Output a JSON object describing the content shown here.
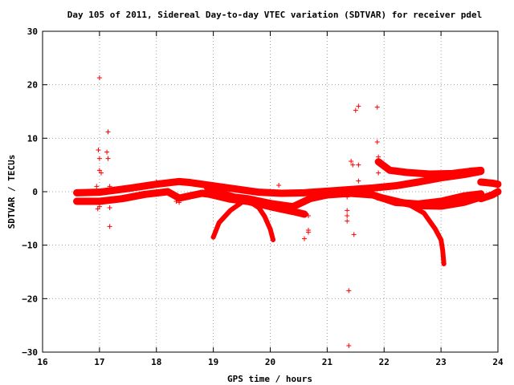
{
  "chart_data": {
    "type": "scatter",
    "title": "Day 105 of 2011, Sidereal Day-to-day VTEC variation (SDTVAR) for receiver pdel",
    "xlabel": "GPS time / hours",
    "ylabel": "SDTVAR / TECUs",
    "xlim": [
      16,
      24
    ],
    "ylim": [
      -30,
      30
    ],
    "xticks": [
      "16",
      "17",
      "18",
      "19",
      "20",
      "21",
      "22",
      "23",
      "24"
    ],
    "yticks": [
      "30",
      "20",
      "10",
      "0",
      "−10",
      "−20",
      "−30"
    ],
    "grid": true,
    "marker": "plus",
    "color": "#ff0000",
    "bands": [
      {
        "name": "",
        "points": [
          [
            16.6,
            -0.2
          ],
          [
            17.0,
            -0.1
          ],
          [
            17.5,
            0.6
          ],
          [
            18.0,
            1.4
          ],
          [
            18.4,
            1.9
          ],
          [
            18.6,
            1.7
          ],
          [
            19.0,
            1.1
          ],
          [
            19.4,
            0.5
          ],
          [
            19.8,
            -0.1
          ],
          [
            20.2,
            -0.3
          ],
          [
            20.6,
            -0.2
          ],
          [
            21.0,
            0.1
          ],
          [
            21.4,
            0.4
          ],
          [
            21.8,
            0.7
          ],
          [
            22.2,
            1.1
          ],
          [
            22.6,
            1.8
          ],
          [
            23.0,
            2.6
          ],
          [
            23.4,
            3.2
          ],
          [
            23.7,
            3.8
          ]
        ]
      },
      {
        "name": "",
        "points": [
          [
            16.6,
            -1.8
          ],
          [
            17.0,
            -1.8
          ],
          [
            17.4,
            -1.3
          ],
          [
            17.8,
            -0.5
          ],
          [
            18.2,
            0.0
          ],
          [
            18.4,
            -1.2
          ],
          [
            18.8,
            -0.3
          ],
          [
            19.2,
            -0.8
          ],
          [
            19.6,
            -1.3
          ],
          [
            20.0,
            -2.2
          ],
          [
            20.4,
            -2.8
          ],
          [
            20.7,
            -1.3
          ],
          [
            21.0,
            -0.6
          ],
          [
            21.4,
            -0.3
          ],
          [
            21.8,
            -0.6
          ],
          [
            22.2,
            -2.0
          ],
          [
            22.6,
            -2.3
          ],
          [
            23.0,
            -1.8
          ],
          [
            23.4,
            -0.8
          ],
          [
            23.7,
            -0.4
          ]
        ]
      },
      {
        "name": "",
        "points": [
          [
            18.9,
            0.7
          ],
          [
            19.2,
            -0.5
          ],
          [
            19.6,
            -1.8
          ],
          [
            20.0,
            -2.8
          ],
          [
            20.4,
            -3.7
          ],
          [
            20.6,
            -4.2
          ]
        ]
      },
      {
        "name": "",
        "points": [
          [
            18.9,
            -0.4
          ],
          [
            19.3,
            -1.4
          ],
          [
            19.6,
            -1.8
          ],
          [
            20.0,
            -2.2
          ],
          [
            20.3,
            -2.9
          ]
        ]
      },
      {
        "name": "",
        "points": [
          [
            21.9,
            5.6
          ],
          [
            22.1,
            4.0
          ],
          [
            22.4,
            3.6
          ],
          [
            22.8,
            3.3
          ],
          [
            23.2,
            3.4
          ],
          [
            23.5,
            3.8
          ],
          [
            23.7,
            4.0
          ]
        ]
      },
      {
        "name": "",
        "points": [
          [
            21.9,
            -1.0
          ],
          [
            22.3,
            -2.0
          ],
          [
            22.6,
            -2.6
          ],
          [
            23.0,
            -2.7
          ],
          [
            23.4,
            -2.0
          ],
          [
            23.7,
            -1.0
          ]
        ]
      },
      {
        "name": "",
        "points": [
          [
            23.7,
            1.8
          ],
          [
            23.9,
            1.6
          ],
          [
            24.0,
            1.4
          ]
        ]
      },
      {
        "name": "",
        "points": [
          [
            23.7,
            -1.3
          ],
          [
            23.9,
            -0.6
          ],
          [
            24.0,
            0.0
          ]
        ]
      }
    ],
    "arcs": [
      {
        "name": "",
        "points": [
          [
            19.6,
            -1.6
          ],
          [
            19.8,
            -3.0
          ],
          [
            19.9,
            -4.6
          ],
          [
            20.0,
            -7.0
          ],
          [
            20.05,
            -9.0
          ]
        ]
      },
      {
        "name": "",
        "points": [
          [
            19.5,
            -2.0
          ],
          [
            19.3,
            -3.5
          ],
          [
            19.1,
            -5.8
          ],
          [
            19.0,
            -8.5
          ]
        ]
      },
      {
        "name": "",
        "points": [
          [
            22.4,
            -2.2
          ],
          [
            22.7,
            -4.0
          ],
          [
            22.9,
            -7.0
          ],
          [
            23.0,
            -9.0
          ]
        ]
      },
      {
        "name": "",
        "points": [
          [
            23.0,
            -9.0
          ],
          [
            23.03,
            -11.0
          ],
          [
            23.05,
            -13.5
          ]
        ]
      }
    ],
    "points": [
      [
        17.0,
        21.3
      ],
      [
        16.98,
        7.8
      ],
      [
        17.0,
        6.2
      ],
      [
        17.0,
        4.0
      ],
      [
        17.03,
        3.5
      ],
      [
        16.95,
        1.0
      ],
      [
        16.97,
        -2.0
      ],
      [
        16.97,
        -3.2
      ],
      [
        17.0,
        -2.8
      ],
      [
        17.15,
        11.2
      ],
      [
        17.13,
        7.4
      ],
      [
        17.15,
        6.2
      ],
      [
        17.18,
        1.0
      ],
      [
        17.18,
        -3.0
      ],
      [
        17.18,
        -6.5
      ],
      [
        18.0,
        1.8
      ],
      [
        18.35,
        -1.8
      ],
      [
        18.4,
        -2.0
      ],
      [
        20.15,
        1.2
      ],
      [
        20.6,
        -4.0
      ],
      [
        20.67,
        -4.5
      ],
      [
        20.67,
        -7.2
      ],
      [
        20.67,
        -7.6
      ],
      [
        20.6,
        -8.8
      ],
      [
        21.35,
        -1.0
      ],
      [
        21.35,
        -3.5
      ],
      [
        21.35,
        -4.5
      ],
      [
        21.35,
        -5.5
      ],
      [
        21.38,
        -18.5
      ],
      [
        21.38,
        -28.8
      ],
      [
        21.42,
        5.7
      ],
      [
        21.45,
        5.0
      ],
      [
        21.47,
        -8.0
      ],
      [
        21.5,
        15.2
      ],
      [
        21.55,
        16.0
      ],
      [
        21.55,
        5.0
      ],
      [
        21.55,
        2.0
      ],
      [
        21.88,
        15.8
      ],
      [
        21.88,
        9.3
      ],
      [
        21.9,
        6.5
      ],
      [
        21.9,
        3.5
      ]
    ]
  }
}
